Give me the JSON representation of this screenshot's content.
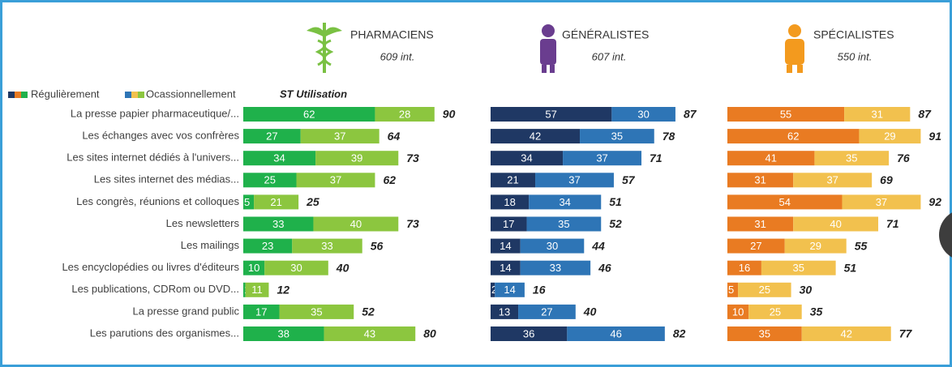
{
  "legend": {
    "items": [
      "Régulièrement",
      "Ocassionnellement"
    ],
    "total_label": "ST Utilisation"
  },
  "chart_data": [
    {
      "type": "bar",
      "title": "PHARMACIENS",
      "subtitle": "609 int.",
      "categories": [
        "La presse papier pharmaceutique/...",
        "Les échanges avec vos confrères",
        "Les sites internet dédiés à l'univers...",
        "Les sites internet des médias...",
        "Les congrès, réunions et colloques",
        "Les newsletters",
        "Les mailings",
        "Les encyclopédies ou livres d'éditeurs",
        "Les publications, CDRom ou DVD...",
        "La presse grand public",
        "Les parutions des organismes..."
      ],
      "series": [
        {
          "color": "#1fb14b",
          "values": [
            62,
            27,
            34,
            25,
            5,
            33,
            23,
            10,
            1,
            17,
            38
          ]
        },
        {
          "color": "#8cc63f",
          "values": [
            28,
            37,
            39,
            37,
            21,
            40,
            33,
            30,
            11,
            35,
            43
          ]
        }
      ],
      "totals": [
        90,
        64,
        73,
        62,
        25,
        73,
        56,
        40,
        12,
        52,
        80
      ]
    },
    {
      "type": "bar",
      "title": "GÉNÉRALISTES",
      "subtitle": "607 int.",
      "series": [
        {
          "color": "#1f3864",
          "values": [
            57,
            42,
            34,
            21,
            18,
            17,
            14,
            14,
            2,
            13,
            36
          ]
        },
        {
          "color": "#2e75b6",
          "values": [
            30,
            35,
            37,
            37,
            34,
            35,
            30,
            33,
            14,
            27,
            46
          ]
        }
      ],
      "totals": [
        87,
        78,
        71,
        57,
        51,
        52,
        44,
        46,
        16,
        40,
        82
      ]
    },
    {
      "type": "bar",
      "title": "SPÉCIALISTES",
      "subtitle": "550 int.",
      "series": [
        {
          "color": "#e97b22",
          "values": [
            55,
            62,
            41,
            31,
            54,
            31,
            27,
            16,
            5,
            10,
            35
          ]
        },
        {
          "color": "#f2c14e",
          "values": [
            31,
            29,
            35,
            37,
            37,
            40,
            29,
            35,
            25,
            25,
            42
          ]
        }
      ],
      "totals": [
        87,
        91,
        76,
        69,
        92,
        71,
        55,
        51,
        30,
        35,
        77
      ]
    }
  ]
}
